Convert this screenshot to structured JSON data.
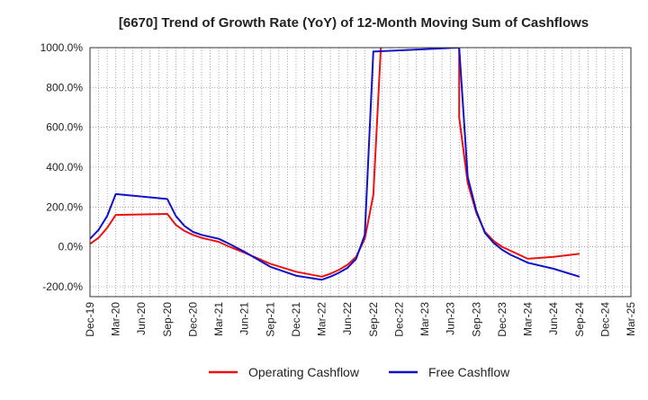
{
  "chart_data": {
    "type": "line",
    "title": "[6670]  Trend of Growth Rate (YoY) of 12-Month Moving Sum of Cashflows",
    "xlabel": "",
    "ylabel": "",
    "ylim": [
      -250,
      1000
    ],
    "yticks": [
      -200,
      0,
      200,
      400,
      600,
      800,
      1000
    ],
    "ytick_labels": [
      "-200.0%",
      "0.0%",
      "200.0%",
      "400.0%",
      "600.0%",
      "800.0%",
      "1000.0%"
    ],
    "xticks": [
      "Dec-19",
      "Mar-20",
      "Jun-20",
      "Sep-20",
      "Dec-20",
      "Mar-21",
      "Jun-21",
      "Sep-21",
      "Dec-21",
      "Mar-22",
      "Jun-22",
      "Sep-22",
      "Dec-22",
      "Mar-23",
      "Jun-23",
      "Sep-23",
      "Dec-23",
      "Mar-24",
      "Jun-24",
      "Sep-24",
      "Dec-24",
      "Mar-25"
    ],
    "grid": true,
    "legend_position": "bottom",
    "series": [
      {
        "name": "Operating Cashflow",
        "color": "#ee1111",
        "points": [
          [
            "2019-12",
            15
          ],
          [
            "2020-01",
            45
          ],
          [
            "2020-02",
            95
          ],
          [
            "2020-03",
            160
          ],
          [
            "2020-09",
            165
          ],
          [
            "2020-10",
            110
          ],
          [
            "2020-11",
            80
          ],
          [
            "2020-12",
            60
          ],
          [
            "2021-01",
            45
          ],
          [
            "2021-02",
            35
          ],
          [
            "2021-03",
            25
          ],
          [
            "2021-04",
            5
          ],
          [
            "2021-06",
            -30
          ],
          [
            "2021-09",
            -85
          ],
          [
            "2021-12",
            -125
          ],
          [
            "2022-03",
            -150
          ],
          [
            "2022-04",
            -135
          ],
          [
            "2022-05",
            -115
          ],
          [
            "2022-06",
            -90
          ],
          [
            "2022-07",
            -50
          ],
          [
            "2022-08",
            40
          ],
          [
            "2022-09",
            260
          ],
          [
            "2022-10",
            1100
          ],
          [
            "2023-07",
            1100
          ],
          [
            "2023-07",
            650
          ],
          [
            "2023-08",
            320
          ],
          [
            "2023-09",
            170
          ],
          [
            "2023-10",
            75
          ],
          [
            "2023-11",
            30
          ],
          [
            "2023-12",
            0
          ],
          [
            "2024-01",
            -20
          ],
          [
            "2024-02",
            -40
          ],
          [
            "2024-03",
            -60
          ],
          [
            "2024-06",
            -50
          ],
          [
            "2024-09",
            -35
          ]
        ]
      },
      {
        "name": "Free Cashflow",
        "color": "#1111cc",
        "points": [
          [
            "2019-12",
            40
          ],
          [
            "2020-01",
            85
          ],
          [
            "2020-02",
            155
          ],
          [
            "2020-03",
            265
          ],
          [
            "2020-09",
            240
          ],
          [
            "2020-10",
            155
          ],
          [
            "2020-11",
            105
          ],
          [
            "2020-12",
            75
          ],
          [
            "2021-01",
            60
          ],
          [
            "2021-02",
            50
          ],
          [
            "2021-03",
            40
          ],
          [
            "2021-04",
            20
          ],
          [
            "2021-06",
            -25
          ],
          [
            "2021-09",
            -100
          ],
          [
            "2021-12",
            -145
          ],
          [
            "2022-03",
            -165
          ],
          [
            "2022-04",
            -150
          ],
          [
            "2022-05",
            -130
          ],
          [
            "2022-06",
            -105
          ],
          [
            "2022-07",
            -60
          ],
          [
            "2022-08",
            60
          ],
          [
            "2022-09",
            980
          ],
          [
            "2023-07",
            1000
          ],
          [
            "2023-08",
            350
          ],
          [
            "2023-09",
            180
          ],
          [
            "2023-10",
            70
          ],
          [
            "2023-11",
            20
          ],
          [
            "2023-12",
            -15
          ],
          [
            "2024-01",
            -40
          ],
          [
            "2024-02",
            -60
          ],
          [
            "2024-03",
            -80
          ],
          [
            "2024-06",
            -110
          ],
          [
            "2024-09",
            -150
          ]
        ]
      }
    ]
  }
}
